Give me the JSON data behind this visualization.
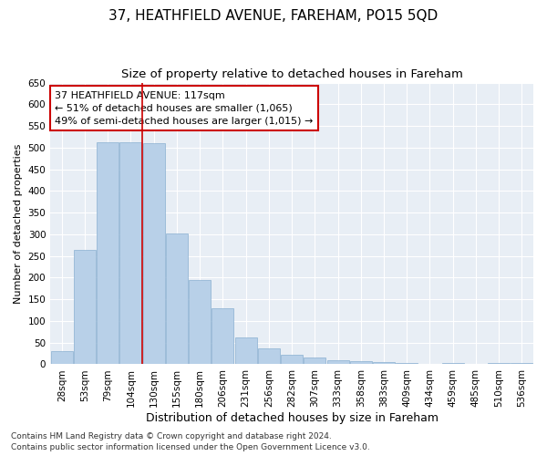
{
  "title": "37, HEATHFIELD AVENUE, FAREHAM, PO15 5QD",
  "subtitle": "Size of property relative to detached houses in Fareham",
  "xlabel": "Distribution of detached houses by size in Fareham",
  "ylabel": "Number of detached properties",
  "categories": [
    "28sqm",
    "53sqm",
    "79sqm",
    "104sqm",
    "130sqm",
    "155sqm",
    "180sqm",
    "206sqm",
    "231sqm",
    "256sqm",
    "282sqm",
    "307sqm",
    "333sqm",
    "358sqm",
    "383sqm",
    "409sqm",
    "434sqm",
    "459sqm",
    "485sqm",
    "510sqm",
    "536sqm"
  ],
  "values": [
    30,
    263,
    513,
    513,
    510,
    302,
    194,
    130,
    62,
    37,
    22,
    15,
    10,
    8,
    5,
    3,
    1,
    4,
    1,
    3,
    3
  ],
  "bar_color": "#b8d0e8",
  "bar_edgecolor": "#8ab0d0",
  "vline_x": 3.5,
  "vline_color": "#cc0000",
  "annotation_text": "37 HEATHFIELD AVENUE: 117sqm\n← 51% of detached houses are smaller (1,065)\n49% of semi-detached houses are larger (1,015) →",
  "annotation_box_color": "#ffffff",
  "annotation_box_edgecolor": "#cc0000",
  "ylim": [
    0,
    650
  ],
  "yticks": [
    0,
    50,
    100,
    150,
    200,
    250,
    300,
    350,
    400,
    450,
    500,
    550,
    600,
    650
  ],
  "background_color": "#e8eef5",
  "footer_line1": "Contains HM Land Registry data © Crown copyright and database right 2024.",
  "footer_line2": "Contains public sector information licensed under the Open Government Licence v3.0.",
  "title_fontsize": 11,
  "subtitle_fontsize": 9.5,
  "xlabel_fontsize": 9,
  "ylabel_fontsize": 8,
  "tick_fontsize": 7.5,
  "annotation_fontsize": 8,
  "footer_fontsize": 6.5
}
